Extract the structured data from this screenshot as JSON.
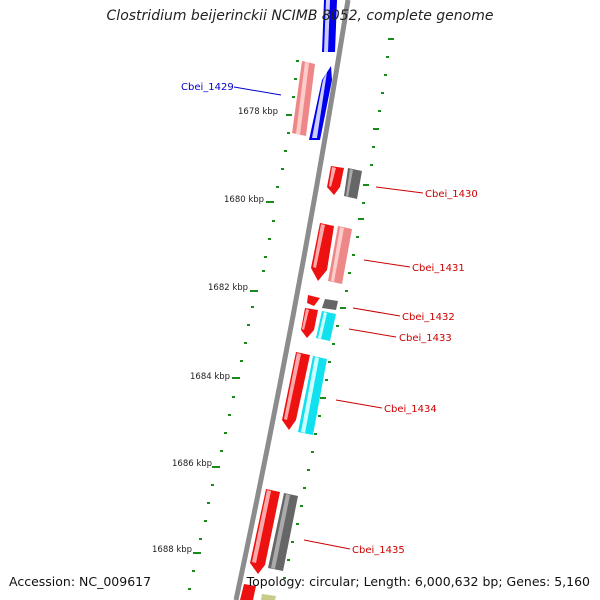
{
  "title": "Clostridium beijerinckii NCIMB 8052, complete genome",
  "footer": {
    "accession": "Accession: NC_009617",
    "summary": "Topology: circular; Length: 6,000,632 bp; Genes: 5,160"
  },
  "scale_labels": [
    "1678 kbp",
    "1680 kbp",
    "1682 kbp",
    "1684 kbp",
    "1686 kbp",
    "1688 kbp"
  ],
  "gene_labels": [
    {
      "text": "Cbei_1429",
      "color": "#0000cc"
    },
    {
      "text": "Cbei_1430",
      "color": "#cc0000"
    },
    {
      "text": "Cbei_1431",
      "color": "#cc0000"
    },
    {
      "text": "Cbei_1432",
      "color": "#cc0000"
    },
    {
      "text": "Cbei_1433",
      "color": "#cc0000"
    },
    {
      "text": "Cbei_1434",
      "color": "#cc0000"
    },
    {
      "text": "Cbei_1435",
      "color": "#cc0000"
    }
  ],
  "colors": {
    "backbone": "#8c8c8c",
    "tick": "#1a8a1a",
    "red": "#ee1111",
    "pink": "#ee8888",
    "blue": "#0000ee",
    "cyan": "#11e0ee",
    "gray": "#666666",
    "olive": "#c8cc88"
  }
}
